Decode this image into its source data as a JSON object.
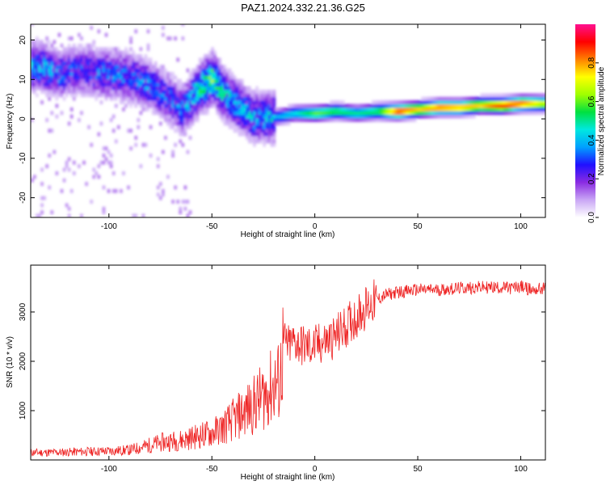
{
  "page": {
    "title": "PAZ1.2024.332.21.36.G25"
  },
  "chart_data": [
    {
      "type": "heatmap",
      "xlabel": "Height of straight line (km)",
      "ylabel": "Frequency (Hz)",
      "xlim": [
        -138,
        112
      ],
      "ylim": [
        -25,
        24
      ],
      "xticks": [
        -100,
        -50,
        0,
        50,
        100
      ],
      "yticks": [
        -20,
        -10,
        0,
        10,
        20
      ],
      "colorbar": {
        "label": "Normalized spectral amplitude",
        "range": [
          0,
          1
        ],
        "ticks": [
          0.0,
          0.2,
          0.4,
          0.6,
          0.8
        ],
        "colors": [
          "#ffffff",
          "#c9a6f5",
          "#8a2be2",
          "#2010ff",
          "#00a0ff",
          "#00e8e0",
          "#00e040",
          "#a0ff00",
          "#ffff00",
          "#ff8000",
          "#ff0000",
          "#ff1090"
        ]
      },
      "ridge": [
        {
          "x": -135,
          "y": 13,
          "a": 0.35
        },
        {
          "x": -125,
          "y": 11,
          "a": 0.3
        },
        {
          "x": -115,
          "y": 12,
          "a": 0.25
        },
        {
          "x": -100,
          "y": 11,
          "a": 0.3
        },
        {
          "x": -90,
          "y": 10,
          "a": 0.3
        },
        {
          "x": -80,
          "y": 8,
          "a": 0.3
        },
        {
          "x": -72,
          "y": 5,
          "a": 0.28
        },
        {
          "x": -65,
          "y": 2,
          "a": 0.3
        },
        {
          "x": -55,
          "y": 8,
          "a": 0.45
        },
        {
          "x": -50,
          "y": 10,
          "a": 0.5
        },
        {
          "x": -45,
          "y": 6,
          "a": 0.4
        },
        {
          "x": -38,
          "y": 3,
          "a": 0.35
        },
        {
          "x": -30,
          "y": 0,
          "a": 0.35
        },
        {
          "x": -20,
          "y": 0,
          "a": 0.38
        },
        {
          "x": -10,
          "y": 1,
          "a": 0.45
        },
        {
          "x": 0,
          "y": 1,
          "a": 0.6
        },
        {
          "x": 10,
          "y": 1.5,
          "a": 0.55
        },
        {
          "x": 20,
          "y": 1,
          "a": 0.5
        },
        {
          "x": 30,
          "y": 1.5,
          "a": 0.55
        },
        {
          "x": 40,
          "y": 1.5,
          "a": 0.9
        },
        {
          "x": 50,
          "y": 2,
          "a": 0.75
        },
        {
          "x": 60,
          "y": 2.5,
          "a": 0.85
        },
        {
          "x": 70,
          "y": 2.5,
          "a": 0.8
        },
        {
          "x": 80,
          "y": 3,
          "a": 0.75
        },
        {
          "x": 90,
          "y": 3,
          "a": 0.9
        },
        {
          "x": 100,
          "y": 3.5,
          "a": 0.85
        },
        {
          "x": 110,
          "y": 3.5,
          "a": 0.7
        }
      ]
    },
    {
      "type": "line",
      "xlabel": "Height of straight line (km)",
      "ylabel": "SNR (10 * v/v)",
      "xlim": [
        -138,
        112
      ],
      "ylim": [
        0,
        3950
      ],
      "xticks": [
        -100,
        -50,
        0,
        50,
        100
      ],
      "yticks": [
        1000,
        2000,
        3000
      ],
      "color": "#ee2222",
      "series": [
        {
          "x": [
            -138,
            -130,
            -120,
            -110,
            -100,
            -90,
            -85,
            -80,
            -75,
            -70,
            -65,
            -60,
            -55,
            -50,
            -45,
            -40,
            -35,
            -30,
            -25,
            -20,
            -17,
            -15,
            -13,
            -10,
            -5,
            0,
            5,
            10,
            15,
            20,
            25,
            30,
            35,
            40,
            50,
            60,
            70,
            80,
            90,
            95,
            100,
            105,
            112
          ],
          "y": [
            150,
            150,
            160,
            170,
            180,
            200,
            250,
            300,
            350,
            380,
            400,
            450,
            500,
            550,
            650,
            800,
            950,
            1100,
            1300,
            1500,
            1600,
            2400,
            2300,
            2400,
            2300,
            2300,
            2400,
            2500,
            2700,
            2900,
            3100,
            3250,
            3350,
            3400,
            3450,
            3450,
            3480,
            3500,
            3500,
            3480,
            3520,
            3450,
            3480
          ]
        }
      ]
    }
  ]
}
